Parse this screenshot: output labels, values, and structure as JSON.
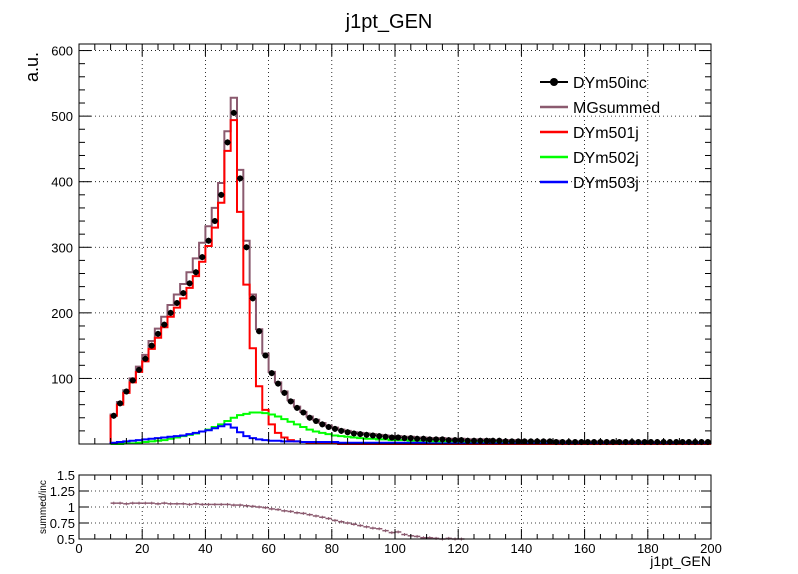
{
  "chart_data": [
    {
      "type": "line",
      "title": "j1pt_GEN",
      "ylabel": "a.u.",
      "xlim": [
        0,
        200
      ],
      "ylim": [
        0,
        610
      ],
      "yticks": [
        100,
        200,
        300,
        400,
        500,
        600
      ],
      "grid": true,
      "legend_position": "top-right",
      "bin_edges": [
        10,
        12,
        14,
        16,
        18,
        20,
        22,
        24,
        26,
        28,
        30,
        32,
        34,
        36,
        38,
        40,
        42,
        44,
        46,
        48,
        50,
        52,
        54,
        56,
        58,
        60,
        62,
        64,
        66,
        68,
        70,
        72,
        74,
        76,
        78,
        80,
        82,
        84,
        86,
        88,
        90,
        92,
        94,
        96,
        98,
        100,
        102,
        104,
        106,
        108,
        110,
        112,
        114,
        116,
        118,
        120,
        122,
        124,
        126,
        128,
        130,
        132,
        134,
        136,
        138,
        140,
        142,
        144,
        146,
        148,
        150,
        152,
        154,
        156,
        158,
        160,
        162,
        164,
        166,
        168,
        170,
        172,
        174,
        176,
        178,
        180,
        182,
        184,
        186,
        188,
        190,
        192,
        194,
        196,
        198,
        200
      ],
      "series": [
        {
          "name": "DYm50inc",
          "style": "markers",
          "color": "#000000",
          "values": [
            43,
            62,
            80,
            97,
            113,
            130,
            150,
            168,
            182,
            200,
            215,
            230,
            245,
            262,
            285,
            310,
            340,
            380,
            460,
            505,
            405,
            300,
            222,
            172,
            135,
            108,
            92,
            78,
            65,
            55,
            48,
            40,
            35,
            30,
            26,
            23,
            20,
            18,
            16,
            15,
            14,
            13,
            12,
            11,
            10,
            10,
            9,
            9,
            8,
            8,
            7,
            7,
            7,
            6,
            6,
            6,
            5,
            5,
            5,
            5,
            5,
            5,
            4,
            4,
            4,
            4,
            4,
            4,
            4,
            4,
            3,
            3,
            3,
            3,
            3,
            3,
            3,
            3,
            3,
            3,
            3,
            3,
            3,
            3,
            3,
            3,
            3,
            3,
            3,
            3,
            3,
            3,
            3,
            3,
            3
          ]
        },
        {
          "name": "MGsummed",
          "style": "hist",
          "color": "#8b5a6f",
          "values": [
            45,
            64,
            82,
            100,
            118,
            136,
            157,
            176,
            194,
            212,
            228,
            244,
            262,
            283,
            307,
            332,
            360,
            398,
            477,
            528,
            418,
            310,
            228,
            175,
            138,
            110,
            94,
            80,
            67,
            57,
            49,
            42,
            37,
            32,
            28,
            25,
            22,
            20,
            18,
            17,
            16,
            15,
            14,
            13,
            12,
            12,
            11,
            11,
            10,
            10,
            9,
            9,
            9,
            8,
            8,
            8,
            7,
            7,
            7,
            7,
            6,
            6,
            6,
            6,
            6,
            5,
            5,
            5,
            5,
            5,
            5,
            4,
            4,
            4,
            4,
            4,
            4,
            4,
            4,
            4,
            4,
            4,
            4,
            4,
            4,
            3,
            3,
            3,
            3,
            3,
            3,
            3,
            3,
            3,
            3
          ]
        },
        {
          "name": "DYm501j",
          "style": "hist",
          "color": "#ff0000",
          "values": [
            43,
            60,
            78,
            94,
            110,
            126,
            145,
            162,
            178,
            194,
            208,
            222,
            238,
            256,
            278,
            302,
            330,
            368,
            447,
            494,
            354,
            243,
            146,
            88,
            52,
            30,
            17,
            10,
            6,
            4,
            3,
            2,
            1,
            1,
            1,
            1,
            0,
            0,
            0,
            0,
            0,
            0,
            0,
            0,
            0,
            0,
            0,
            0,
            0,
            0,
            0,
            0,
            0,
            0,
            0,
            0,
            0,
            0,
            0,
            0,
            0,
            0,
            0,
            0,
            0,
            0,
            0,
            0,
            0,
            0,
            0,
            0,
            0,
            0,
            0,
            0,
            0,
            0,
            0,
            0,
            0,
            0,
            0,
            0,
            0,
            0,
            0,
            0,
            0,
            0,
            0,
            0,
            0,
            0,
            0
          ]
        },
        {
          "name": "DYm502j",
          "style": "hist",
          "color": "#00ff00",
          "values": [
            0,
            0,
            1,
            1,
            2,
            3,
            4,
            5,
            6,
            8,
            10,
            12,
            14,
            16,
            19,
            22,
            26,
            30,
            35,
            40,
            44,
            46,
            48,
            48,
            47,
            45,
            42,
            38,
            34,
            30,
            26,
            22,
            19,
            17,
            15,
            13,
            12,
            11,
            10,
            9,
            8,
            8,
            7,
            7,
            6,
            6,
            6,
            5,
            5,
            5,
            4,
            4,
            4,
            4,
            4,
            3,
            3,
            3,
            3,
            3,
            3,
            3,
            3,
            2,
            2,
            2,
            2,
            2,
            2,
            2,
            2,
            2,
            2,
            2,
            2,
            2,
            2,
            2,
            2,
            2,
            2,
            2,
            2,
            2,
            2,
            2,
            2,
            2,
            2,
            2,
            2,
            2,
            2,
            2,
            2
          ]
        },
        {
          "name": "DYm503j",
          "style": "hist",
          "color": "#0000ff",
          "values": [
            2,
            3,
            4,
            5,
            6,
            7,
            8,
            9,
            10,
            11,
            12,
            13,
            15,
            17,
            19,
            21,
            24,
            27,
            30,
            25,
            18,
            12,
            9,
            7,
            6,
            5,
            5,
            4,
            4,
            4,
            3,
            3,
            3,
            3,
            3,
            3,
            2,
            2,
            2,
            2,
            2,
            2,
            2,
            2,
            2,
            2,
            2,
            2,
            2,
            2,
            1,
            1,
            1,
            1,
            1,
            1,
            1,
            1,
            1,
            1,
            1,
            1,
            1,
            1,
            1,
            1,
            1,
            1,
            1,
            1,
            1,
            1,
            1,
            1,
            1,
            1,
            1,
            1,
            1,
            1,
            1,
            1,
            1,
            1,
            1,
            1,
            1,
            1,
            1,
            1,
            1,
            1,
            1,
            1,
            1
          ]
        }
      ]
    },
    {
      "type": "scatter",
      "ylabel": "summed/inc",
      "xlabel": "j1pt_GEN",
      "xlim": [
        0,
        200
      ],
      "ylim": [
        0.5,
        1.5
      ],
      "xticks": [
        0,
        20,
        40,
        60,
        80,
        100,
        120,
        140,
        160,
        180,
        200
      ],
      "yticks": [
        "0.5",
        "0.75",
        "1",
        "1.25",
        "1.5"
      ],
      "grid": true,
      "color": "#8b5a6f",
      "x": [
        11,
        13,
        15,
        17,
        19,
        21,
        23,
        25,
        27,
        29,
        31,
        33,
        35,
        37,
        39,
        41,
        43,
        45,
        47,
        49,
        51,
        53,
        55,
        57,
        59,
        61,
        63,
        65,
        67,
        69,
        71,
        73,
        75,
        77,
        79,
        81,
        83,
        85,
        87,
        89,
        91,
        93,
        95,
        97,
        99,
        101,
        103,
        105,
        107,
        109,
        111,
        113,
        115,
        117,
        119,
        121
      ],
      "y": [
        1.06,
        1.06,
        1.05,
        1.06,
        1.06,
        1.06,
        1.06,
        1.05,
        1.06,
        1.05,
        1.05,
        1.05,
        1.04,
        1.05,
        1.04,
        1.04,
        1.04,
        1.04,
        1.04,
        1.03,
        1.03,
        1.02,
        1.01,
        1.0,
        0.99,
        0.97,
        0.96,
        0.94,
        0.93,
        0.91,
        0.9,
        0.88,
        0.86,
        0.84,
        0.82,
        0.79,
        0.77,
        0.75,
        0.73,
        0.71,
        0.69,
        0.67,
        0.66,
        0.63,
        0.6,
        0.61,
        0.57,
        0.55,
        0.54,
        0.52,
        0.52,
        0.51,
        0.5,
        0.51,
        0.5,
        0.5
      ]
    }
  ]
}
